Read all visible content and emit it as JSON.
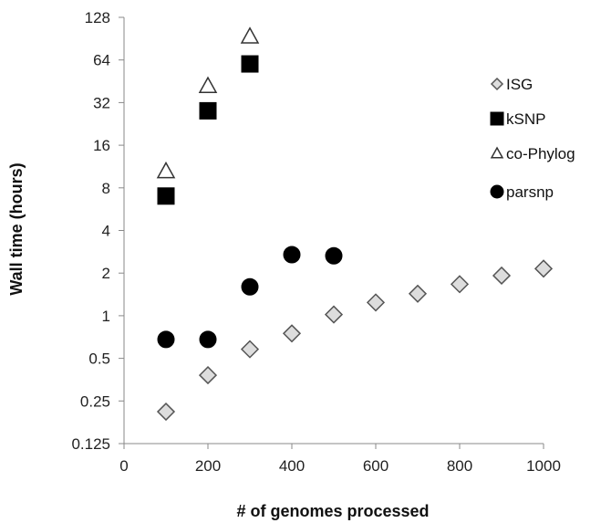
{
  "chart_data": {
    "type": "scatter",
    "xlabel": "# of genomes processed",
    "ylabel": "Wall time (hours)",
    "xlim": [
      0,
      1000
    ],
    "ylim": [
      0.125,
      128
    ],
    "yscale": "log2",
    "xticks": [
      0,
      200,
      400,
      600,
      800,
      1000
    ],
    "yticks": [
      0.125,
      0.25,
      0.5,
      1,
      2,
      4,
      8,
      16,
      32,
      64,
      128
    ],
    "grid": false,
    "legend_position": "right",
    "series": [
      {
        "name": "ISG",
        "marker": "diamond",
        "fill": "#dddddd",
        "stroke": "#555555",
        "x": [
          100,
          200,
          300,
          400,
          500,
          600,
          700,
          800,
          900,
          1000
        ],
        "y": [
          0.21,
          0.38,
          0.58,
          0.75,
          1.02,
          1.24,
          1.43,
          1.67,
          1.92,
          2.15
        ]
      },
      {
        "name": "kSNP",
        "marker": "square",
        "fill": "#000000",
        "stroke": "#000000",
        "x": [
          100,
          200,
          300
        ],
        "y": [
          7,
          28,
          60
        ]
      },
      {
        "name": "co-Phylog",
        "marker": "triangle",
        "fill": "#ffffff",
        "stroke": "#333333",
        "x": [
          100,
          200,
          300
        ],
        "y": [
          10.5,
          42,
          94
        ]
      },
      {
        "name": "parsnp",
        "marker": "circle",
        "fill": "#000000",
        "stroke": "#000000",
        "x": [
          100,
          200,
          300,
          400,
          500
        ],
        "y": [
          0.68,
          0.68,
          1.6,
          2.7,
          2.65
        ]
      }
    ]
  }
}
